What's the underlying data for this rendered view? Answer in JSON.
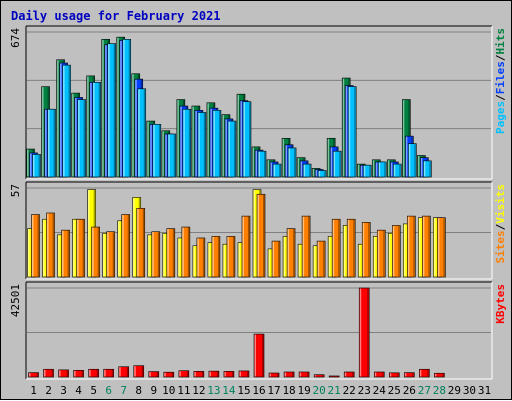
{
  "chart_data": {
    "type": "bar",
    "title": "Daily usage for February 2021",
    "days": [
      "1",
      "2",
      "3",
      "4",
      "5",
      "6",
      "7",
      "8",
      "9",
      "10",
      "11",
      "12",
      "13",
      "14",
      "15",
      "16",
      "17",
      "18",
      "19",
      "20",
      "21",
      "22",
      "23",
      "24",
      "25",
      "26",
      "27",
      "28",
      "29",
      "30",
      "31"
    ],
    "weekend_days": [
      "6",
      "7",
      "13",
      "14",
      "20",
      "21",
      "27",
      "28"
    ],
    "colors": {
      "pages": "#00c0ff",
      "files": "#0040ff",
      "hits": "#008040",
      "sites": "#ff8000",
      "visits": "#ffff00",
      "kbytes": "#ff0000",
      "title": "#0000c0",
      "weekend": "#00805c"
    },
    "panels": [
      {
        "id": "hits-files-pages",
        "ymax_label": "674",
        "ymax": 674,
        "legend": [
          {
            "text": "Pages",
            "color": "#00c0ff"
          },
          {
            "text": "/",
            "color": "#000000"
          },
          {
            "text": "Files",
            "color": "#0040ff"
          },
          {
            "text": "/",
            "color": "#000000"
          },
          {
            "text": "Hits",
            "color": "#008040"
          }
        ],
        "series": [
          {
            "name": "Hits",
            "key": "hits",
            "values": [
              130,
              420,
              545,
              390,
              470,
              640,
              650,
              480,
              260,
              215,
              360,
              330,
              345,
              290,
              385,
              140,
              80,
              180,
              90,
              40,
              180,
              460,
              60,
              80,
              80,
              360,
              100,
              0,
              0,
              0,
              0
            ]
          },
          {
            "name": "Files",
            "key": "files",
            "values": [
              112,
              315,
              530,
              370,
              440,
              615,
              635,
              455,
              245,
              200,
              330,
              310,
              320,
              270,
              355,
              125,
              70,
              150,
              75,
              35,
              140,
              425,
              55,
              70,
              70,
              190,
              90,
              0,
              0,
              0,
              0
            ]
          },
          {
            "name": "Pages",
            "key": "pages",
            "values": [
              105,
              315,
              520,
              360,
              440,
              620,
              640,
              410,
              245,
              200,
              315,
              300,
              310,
              260,
              350,
              120,
              60,
              135,
              60,
              30,
              120,
              420,
              55,
              70,
              60,
              155,
              75,
              0,
              0,
              0,
              0
            ]
          }
        ]
      },
      {
        "id": "visits-sites",
        "ymax_label": "57",
        "ymax": 57,
        "legend": [
          {
            "text": "Sites",
            "color": "#ff8000"
          },
          {
            "text": "/",
            "color": "#000000"
          },
          {
            "text": "Visits",
            "color": "#ffff00"
          }
        ],
        "series": [
          {
            "name": "Visits",
            "key": "visits",
            "values": [
              31,
              37,
              27,
              37,
              56,
              28,
              36,
              51,
              27,
              28,
              25,
              20,
              22,
              21,
              22,
              56,
              18,
              26,
              21,
              20,
              26,
              33,
              21,
              26,
              28,
              34,
              38,
              38,
              0,
              0,
              0
            ]
          },
          {
            "name": "Sites",
            "key": "sites",
            "values": [
              40,
              41,
              30,
              37,
              32,
              29,
              40,
              44,
              29,
              31,
              32,
              25,
              26,
              26,
              39,
              53,
              23,
              31,
              39,
              23,
              37,
              37,
              35,
              30,
              33,
              39,
              39,
              38,
              0,
              0,
              0
            ]
          }
        ]
      },
      {
        "id": "kbytes",
        "ymax_label": "42501",
        "ymax": 42501,
        "legend": [
          {
            "text": "KBytes",
            "color": "#ff0000"
          }
        ],
        "series": [
          {
            "name": "KBytes",
            "key": "kbytes",
            "values": [
              2100,
              3700,
              3400,
              3200,
              3700,
              3700,
              4900,
              5400,
              2600,
              2300,
              3000,
              2700,
              2800,
              2700,
              2900,
              20500,
              1900,
              2400,
              2400,
              1100,
              500,
              2400,
              42500,
              2400,
              2000,
              2100,
              3700,
              1800,
              0,
              0,
              0
            ]
          }
        ]
      }
    ]
  }
}
